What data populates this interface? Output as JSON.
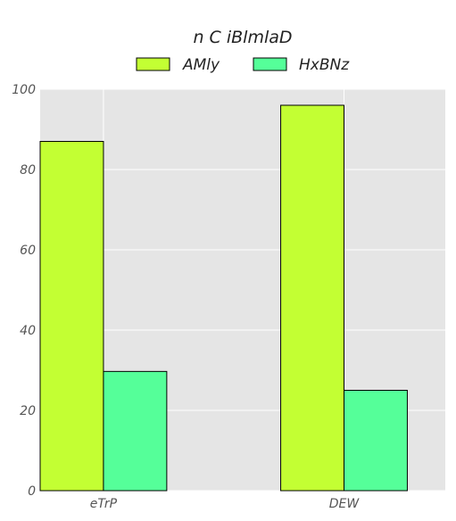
{
  "chart_data": {
    "type": "bar",
    "title": "n  C iBlmlaD",
    "xlabel": "",
    "ylabel": "",
    "categories": [
      "eTrP",
      "DEW"
    ],
    "series": [
      {
        "name": "AMly",
        "values": [
          87,
          96
        ],
        "color": "#c3ff33"
      },
      {
        "name": "HxBNz",
        "values": [
          29.7,
          25
        ],
        "color": "#55ff99"
      }
    ],
    "ylim": [
      0,
      100
    ],
    "yticks": [
      0,
      20,
      40,
      60,
      80,
      100
    ],
    "grid": true,
    "legend_position": "top-center",
    "plot_background": "#e5e5e5",
    "grid_color": "#ffffff",
    "bar_edge_color": "#000000"
  }
}
